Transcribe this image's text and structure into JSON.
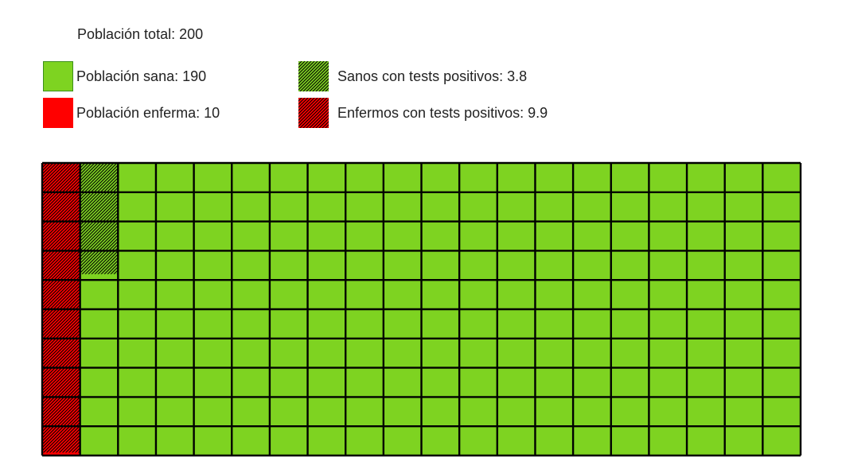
{
  "legend": {
    "total_label": "Población total: 200",
    "healthy_label": "Población sana: 190",
    "sick_label": "Población enferma: 10",
    "false_positive_label": "Sanos con tests positivos: 3.8",
    "true_positive_label": "Enfermos con tests positivos: 9.9"
  },
  "colors": {
    "healthy": "#7ed321",
    "sick": "#ff0000",
    "grid": "#000000",
    "hatch": "#000000"
  },
  "chart_data": {
    "type": "waffle",
    "total": 200,
    "rows": 10,
    "columns": 20,
    "categories": [
      "Población sana",
      "Población enferma"
    ],
    "values": [
      190,
      10
    ],
    "overlays": [
      {
        "name": "Sanos con tests positivos",
        "value": 3.8,
        "base": "Población sana",
        "pattern": "hatch"
      },
      {
        "name": "Enfermos con tests positivos",
        "value": 9.9,
        "base": "Población enferma",
        "pattern": "hatch"
      }
    ],
    "title": "",
    "xlabel": "",
    "ylabel": ""
  }
}
